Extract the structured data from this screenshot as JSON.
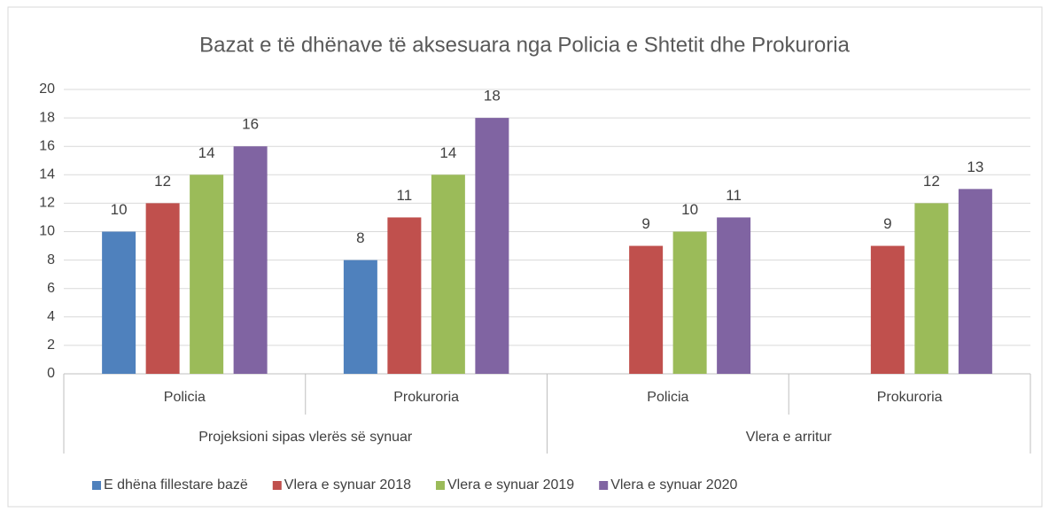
{
  "chart_data": {
    "type": "bar",
    "title": "Bazat e të dhënave të aksesuara nga Policia e Shtetit dhe Prokuroria",
    "category_groups": [
      {
        "label": "Projeksioni sipas vlerës së synuar",
        "categories": [
          "Policia",
          "Prokuroria"
        ]
      },
      {
        "label": "Vlera e arritur",
        "categories": [
          "Policia",
          "Prokuroria"
        ]
      }
    ],
    "series": [
      {
        "name": "E dhëna fillestare bazë",
        "color": "#4f81bd",
        "values": [
          10,
          8,
          null,
          null
        ]
      },
      {
        "name": "Vlera e synuar 2018",
        "color": "#c0504d",
        "values": [
          12,
          11,
          9,
          9
        ]
      },
      {
        "name": "Vlera e synuar 2019",
        "color": "#9bbb59",
        "values": [
          14,
          14,
          10,
          12
        ]
      },
      {
        "name": "Vlera e synuar 2020",
        "color": "#8064a2",
        "values": [
          16,
          18,
          11,
          13
        ]
      }
    ],
    "ylim": [
      0,
      20
    ],
    "yticks": [
      0,
      2,
      4,
      6,
      8,
      10,
      12,
      14,
      16,
      18,
      20
    ],
    "grid": true,
    "legend": "bottom"
  }
}
